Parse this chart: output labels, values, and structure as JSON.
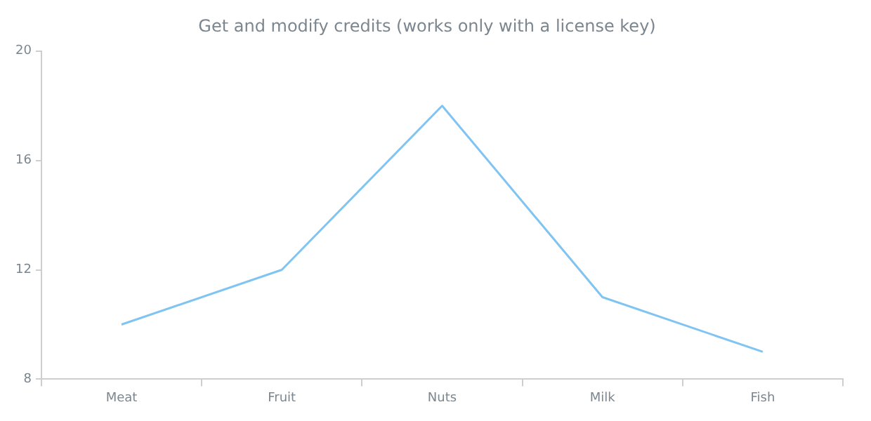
{
  "chart_data": {
    "type": "line",
    "title": "Get and modify credits (works only with a license key)",
    "categories": [
      "Meat",
      "Fruit",
      "Nuts",
      "Milk",
      "Fish"
    ],
    "series": [
      {
        "color": "#80c4f2",
        "values": [
          10,
          12,
          18,
          11,
          9
        ]
      }
    ],
    "ylim": [
      8,
      20
    ],
    "yticks": [
      8,
      12,
      16,
      20
    ],
    "grid": false,
    "legend": false,
    "marker": "none"
  }
}
